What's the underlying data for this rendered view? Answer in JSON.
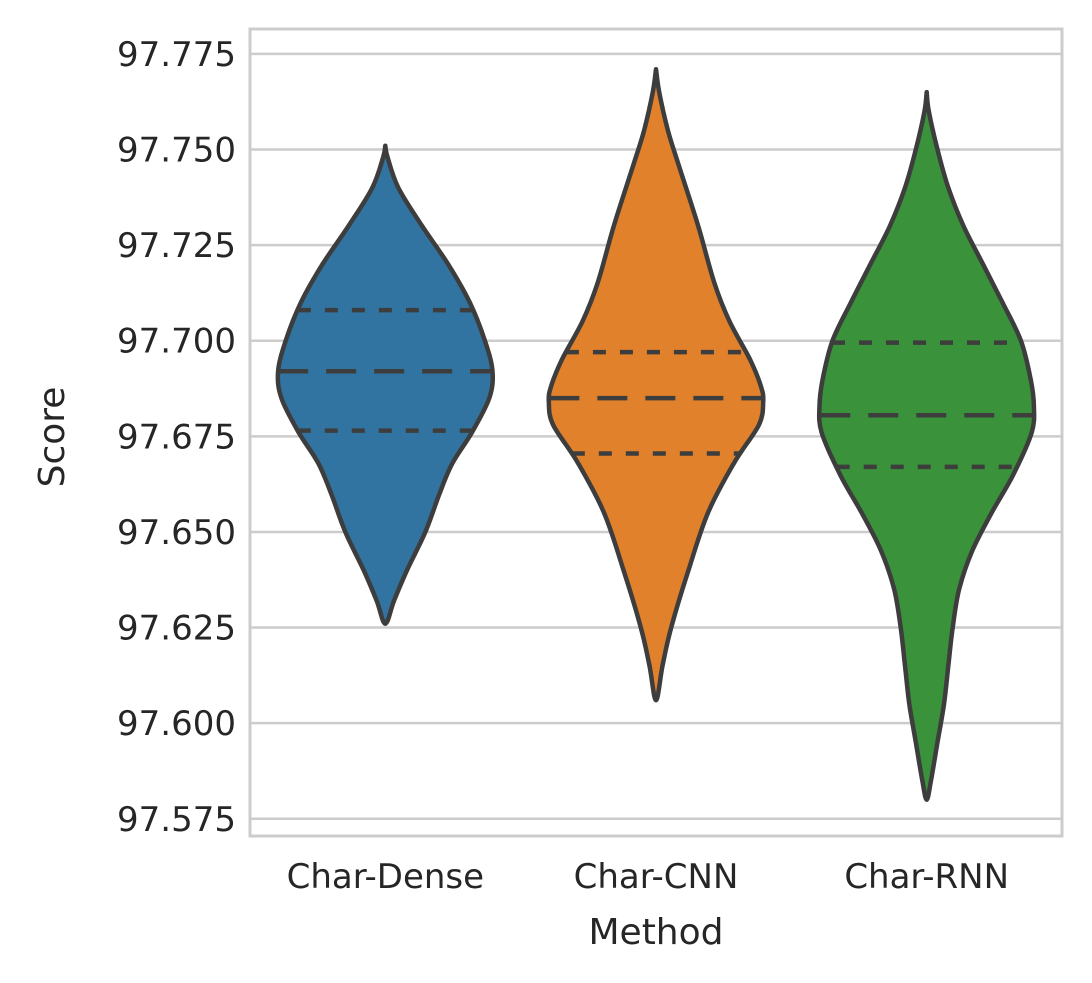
{
  "chart_data": {
    "type": "violin",
    "xlabel": "Method",
    "ylabel": "Score",
    "categories": [
      "Char-Dense",
      "Char-CNN",
      "Char-RNN"
    ],
    "colors": [
      "#3274a1",
      "#e1812c",
      "#3a923a"
    ],
    "ylim": [
      97.5705,
      97.7815
    ],
    "yticks": [
      97.575,
      97.6,
      97.625,
      97.65,
      97.675,
      97.7,
      97.725,
      97.75,
      97.775
    ],
    "ytick_labels": [
      "97.575",
      "97.600",
      "97.625",
      "97.650",
      "97.675",
      "97.700",
      "97.725",
      "97.750",
      "97.775"
    ],
    "grid": true,
    "series": [
      {
        "category": "Char-Dense",
        "min": 97.626,
        "max": 97.751,
        "quartiles": {
          "q1": 97.6765,
          "median": 97.692,
          "q3": 97.708
        },
        "density_profile": [
          [
            97.751,
            0.0
          ],
          [
            97.748,
            0.02
          ],
          [
            97.74,
            0.12
          ],
          [
            97.73,
            0.34
          ],
          [
            97.72,
            0.58
          ],
          [
            97.71,
            0.78
          ],
          [
            97.7,
            0.92
          ],
          [
            97.692,
            0.99
          ],
          [
            97.685,
            0.96
          ],
          [
            97.676,
            0.8
          ],
          [
            97.668,
            0.62
          ],
          [
            97.66,
            0.5
          ],
          [
            97.65,
            0.37
          ],
          [
            97.64,
            0.2
          ],
          [
            97.632,
            0.08
          ],
          [
            97.626,
            0.0
          ]
        ]
      },
      {
        "category": "Char-CNN",
        "min": 97.606,
        "max": 97.771,
        "quartiles": {
          "q1": 97.6705,
          "median": 97.685,
          "q3": 97.697
        },
        "density_profile": [
          [
            97.771,
            0.0
          ],
          [
            97.765,
            0.03
          ],
          [
            97.755,
            0.11
          ],
          [
            97.745,
            0.22
          ],
          [
            97.73,
            0.39
          ],
          [
            97.715,
            0.54
          ],
          [
            97.705,
            0.68
          ],
          [
            97.695,
            0.87
          ],
          [
            97.688,
            0.97
          ],
          [
            97.684,
            0.99
          ],
          [
            97.678,
            0.95
          ],
          [
            97.668,
            0.72
          ],
          [
            97.655,
            0.48
          ],
          [
            97.64,
            0.3
          ],
          [
            97.625,
            0.14
          ],
          [
            97.615,
            0.06
          ],
          [
            97.606,
            0.0
          ]
        ]
      },
      {
        "category": "Char-RNN",
        "min": 97.58,
        "max": 97.765,
        "quartiles": {
          "q1": 97.667,
          "median": 97.6805,
          "q3": 97.6995
        },
        "density_profile": [
          [
            97.765,
            0.0
          ],
          [
            97.76,
            0.02
          ],
          [
            97.75,
            0.1
          ],
          [
            97.74,
            0.2
          ],
          [
            97.73,
            0.34
          ],
          [
            97.72,
            0.52
          ],
          [
            97.71,
            0.7
          ],
          [
            97.7,
            0.87
          ],
          [
            97.69,
            0.96
          ],
          [
            97.683,
            0.99
          ],
          [
            97.676,
            0.97
          ],
          [
            97.665,
            0.8
          ],
          [
            97.655,
            0.6
          ],
          [
            97.645,
            0.42
          ],
          [
            97.635,
            0.3
          ],
          [
            97.625,
            0.24
          ],
          [
            97.615,
            0.2
          ],
          [
            97.605,
            0.16
          ],
          [
            97.595,
            0.1
          ],
          [
            97.585,
            0.04
          ],
          [
            97.58,
            0.0
          ]
        ]
      }
    ]
  }
}
